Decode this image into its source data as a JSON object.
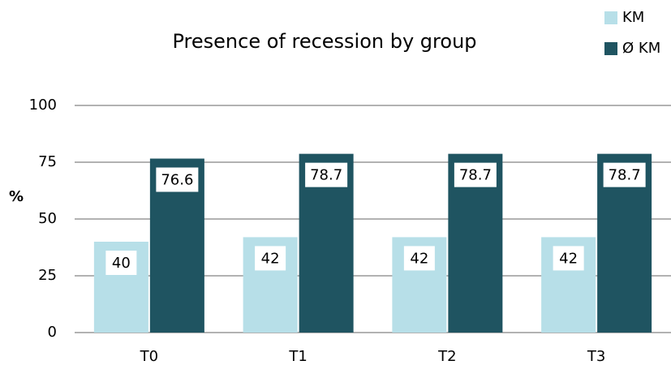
{
  "chart_data": {
    "type": "bar",
    "title": "Presence of recession by group",
    "y_label": "%",
    "categories": [
      "T0",
      "T1",
      "T2",
      "T3"
    ],
    "series": [
      {
        "name": "KM",
        "color": "#b7dfe8",
        "values": [
          40,
          42,
          42,
          42
        ]
      },
      {
        "name": "Ø KM",
        "color": "#1f5461",
        "values": [
          76.6,
          78.7,
          78.7,
          78.7
        ]
      }
    ],
    "ylim": [
      0,
      100
    ],
    "yticks": [
      0,
      25,
      50,
      75,
      100
    ],
    "grid": true,
    "legend": "top-right",
    "data_labels": true
  }
}
